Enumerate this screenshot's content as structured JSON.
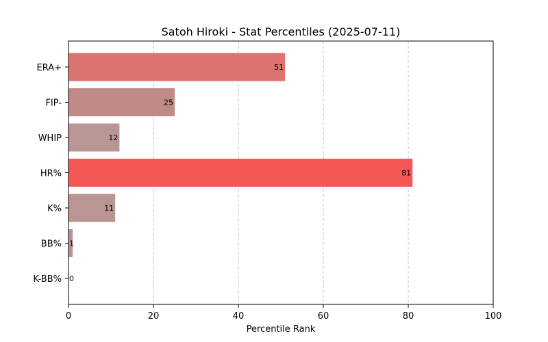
{
  "chart_data": {
    "type": "bar",
    "orientation": "horizontal",
    "title": "Satoh Hiroki - Stat Percentiles (2025-07-11)",
    "xlabel": "Percentile Rank",
    "ylabel": "",
    "xlim": [
      0,
      100
    ],
    "x_ticks": [
      0,
      20,
      40,
      60,
      80,
      100
    ],
    "grid": "x-dashed",
    "categories": [
      "ERA+",
      "FIP-",
      "WHIP",
      "HR%",
      "K%",
      "BB%",
      "K-BB%"
    ],
    "values": [
      51,
      25,
      12,
      81,
      11,
      1,
      0
    ],
    "colors": [
      "#dc7370",
      "#c08a87",
      "#b99593",
      "#f55656",
      "#b99593",
      "#b99593",
      "#b99593"
    ]
  }
}
